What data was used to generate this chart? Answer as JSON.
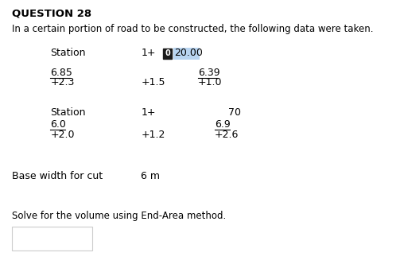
{
  "title": "QUESTION 28",
  "intro": "In a certain portion of road to be constructed, the following data were taken.",
  "station1_label": "Station",
  "station1_header": "1+",
  "station1_icon": "0",
  "station1_value": "20.00",
  "row1_left_top": "6.85",
  "row1_mid_bot": "+1.5",
  "row1_right_top": "6.39",
  "row1_left_bot": "+2.3",
  "row1_right_bot": "+1.0",
  "station2_label": "Station",
  "station2_header": "1+",
  "station2_right": "70",
  "row2_left_top": "6.0",
  "row2_right_top": "6.9",
  "row2_left_bot": "+2.0",
  "row2_mid_bot": "+1.2",
  "row2_right_bot": "+2.6",
  "base_width_label": "Base width for cut",
  "base_width_value": "6 m",
  "question": "Solve for the volume using End-Area method.",
  "bg_color": "#ffffff",
  "text_color": "#000000",
  "underline_color": "#000000",
  "highlight_color": "#b8d4f0",
  "icon_color": "#1a1a1a"
}
